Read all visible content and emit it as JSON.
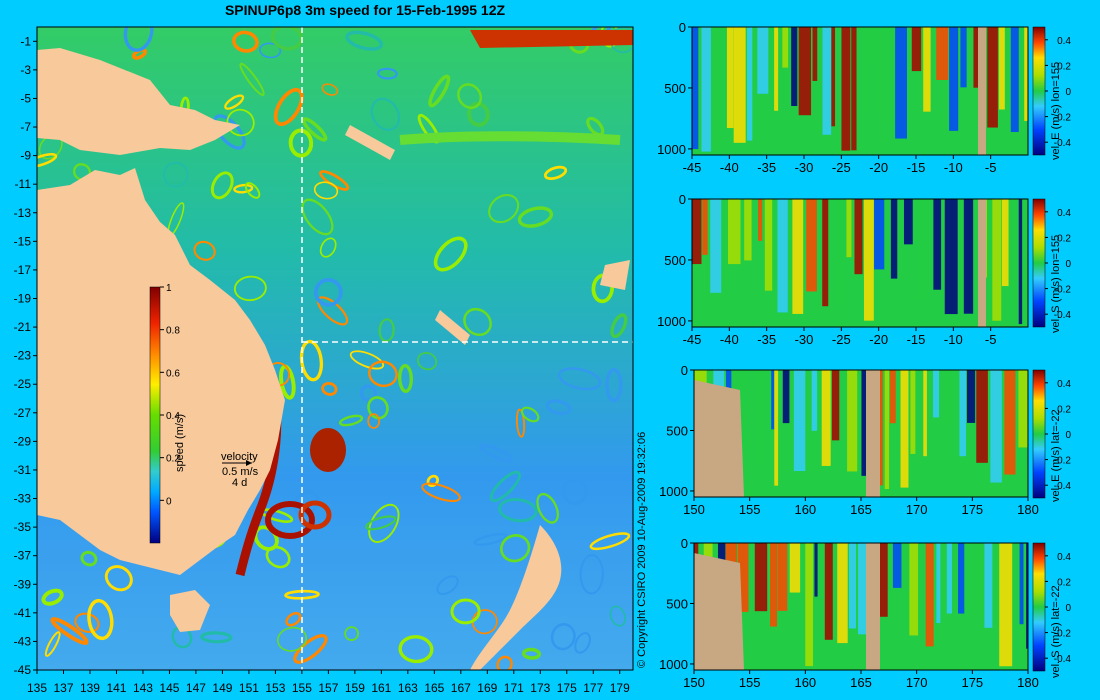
{
  "title": "SPINUP6p8 3m speed for 15-Feb-1995 12Z",
  "copyright": "© Copyright CSIRO 2009   10-Aug-2009 19:32:06",
  "colors": {
    "background": "#00ccff",
    "land": "#f7c99b",
    "section_land": "#c8a882"
  },
  "velocity_legend": {
    "title": "velocity",
    "speed": "0.5 m/s",
    "days": "4 d"
  },
  "chart_data": [
    {
      "type": "heatmap",
      "title": "SPINUP6p8 3m speed for 15-Feb-1995 12Z",
      "x_ticks": [
        "135",
        "137",
        "139",
        "141",
        "143",
        "145",
        "147",
        "149",
        "151",
        "153",
        "155",
        "157",
        "159",
        "161",
        "163",
        "165",
        "167",
        "169",
        "171",
        "173",
        "175",
        "177",
        "179"
      ],
      "y_ticks": [
        "-1",
        "-3",
        "-5",
        "-7",
        "-9",
        "-11",
        "-13",
        "-15",
        "-17",
        "-19",
        "-21",
        "-23",
        "-25",
        "-27",
        "-29",
        "-31",
        "-33",
        "-35",
        "-37",
        "-39",
        "-41",
        "-43",
        "-45"
      ],
      "xlim": [
        135,
        180
      ],
      "ylim": [
        -45,
        0
      ],
      "section_lines": {
        "lon": 155,
        "lat": -22
      },
      "colorbar": {
        "label": "speed (m/s)",
        "ticks": [
          "1",
          "0.8",
          "0.6",
          "0.4",
          "0.2",
          "0"
        ],
        "range": [
          -0.2,
          1
        ]
      }
    },
    {
      "type": "heatmap",
      "ylabel_right": "vel. E (m/s) lon=155",
      "x_ticks": [
        "-45",
        "-40",
        "-35",
        "-30",
        "-25",
        "-20",
        "-15",
        "-10",
        "-5"
      ],
      "y_ticks": [
        "0",
        "500",
        "1000"
      ],
      "colorbar_ticks": [
        "0.4",
        "0.2",
        "0",
        "-0.2",
        "-0.4"
      ],
      "xlim": [
        -45,
        0
      ],
      "ylim": [
        1050,
        0
      ]
    },
    {
      "type": "heatmap",
      "ylabel_right": "vel. S (m/s) lon=155",
      "x_ticks": [
        "-45",
        "-40",
        "-35",
        "-30",
        "-25",
        "-20",
        "-15",
        "-10",
        "-5"
      ],
      "y_ticks": [
        "0",
        "500",
        "1000"
      ],
      "colorbar_ticks": [
        "0.4",
        "0.2",
        "0",
        "-0.2",
        "-0.4"
      ],
      "xlim": [
        -45,
        0
      ],
      "ylim": [
        1050,
        0
      ]
    },
    {
      "type": "heatmap",
      "ylabel_right": "vel. E (m/s) lat=-22",
      "x_ticks": [
        "150",
        "155",
        "160",
        "165",
        "170",
        "175",
        "180"
      ],
      "y_ticks": [
        "0",
        "500",
        "1000"
      ],
      "colorbar_ticks": [
        "0.4",
        "0.2",
        "0",
        "-0.2",
        "-0.4"
      ],
      "xlim": [
        150,
        180
      ],
      "ylim": [
        1050,
        0
      ]
    },
    {
      "type": "heatmap",
      "ylabel_right": "vel. S (m/s) lat=-22",
      "x_ticks": [
        "150",
        "155",
        "160",
        "165",
        "170",
        "175",
        "180"
      ],
      "y_ticks": [
        "0",
        "500",
        "1000"
      ],
      "colorbar_ticks": [
        "0.4",
        "0.2",
        "0",
        "-0.2",
        "-0.4"
      ],
      "xlim": [
        150,
        180
      ],
      "ylim": [
        1050,
        0
      ]
    }
  ]
}
